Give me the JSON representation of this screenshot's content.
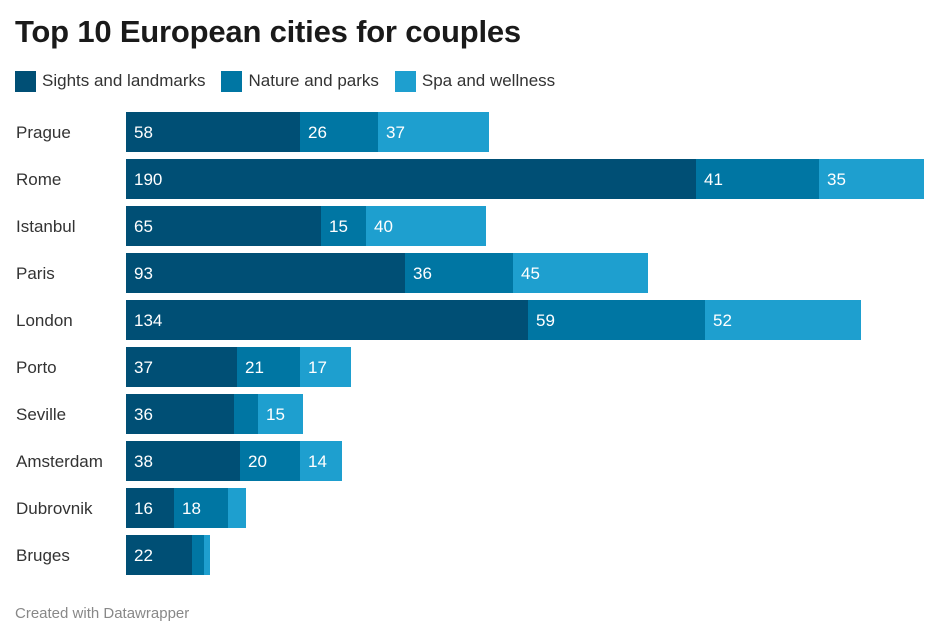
{
  "title": "Top 10 European cities for couples",
  "footer": "Created with Datawrapper",
  "chart_data": {
    "type": "bar",
    "orientation": "horizontal",
    "stacked": true,
    "title": "Top 10 European cities for couples",
    "categories": [
      "Prague",
      "Rome",
      "Istanbul",
      "Paris",
      "London",
      "Porto",
      "Seville",
      "Amsterdam",
      "Dubrovnik",
      "Bruges"
    ],
    "series": [
      {
        "name": "Sights and landmarks",
        "color": "#004f75",
        "values": [
          58,
          190,
          65,
          93,
          134,
          37,
          36,
          38,
          16,
          22
        ],
        "labels": [
          "58",
          "190",
          "65",
          "93",
          "134",
          "37",
          "36",
          "38",
          "16",
          "22"
        ]
      },
      {
        "name": "Nature and parks",
        "color": "#0076a3",
        "values": [
          26,
          41,
          15,
          36,
          59,
          21,
          8,
          20,
          18,
          4
        ],
        "labels": [
          "26",
          "41",
          "15",
          "36",
          "59",
          "21",
          "",
          "20",
          "18",
          ""
        ]
      },
      {
        "name": "Spa and wellness",
        "color": "#1e9fcf",
        "values": [
          37,
          35,
          40,
          45,
          52,
          17,
          15,
          14,
          6,
          2
        ],
        "labels": [
          "37",
          "35",
          "40",
          "45",
          "52",
          "17",
          "15",
          "14",
          "",
          ""
        ]
      }
    ],
    "legend_position": "top-left",
    "grid": false
  }
}
